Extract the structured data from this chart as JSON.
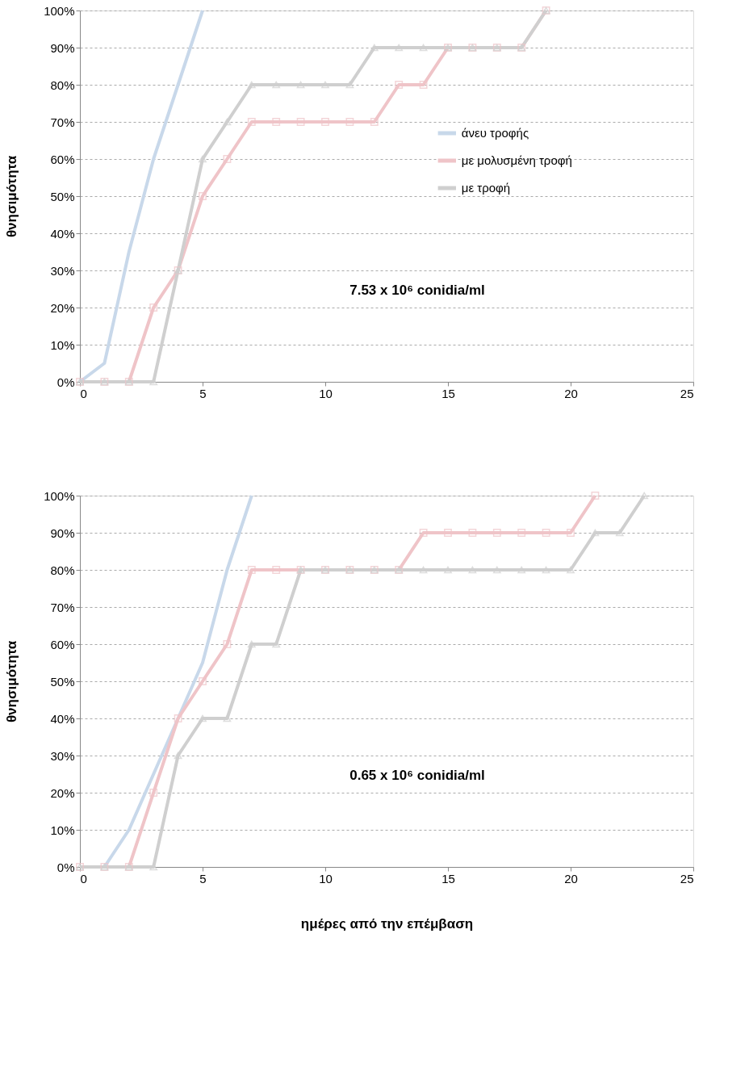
{
  "chart_data": [
    {
      "type": "line",
      "ylabel": "θνησιμότητα",
      "annotations": [
        "7.53 x 10⁶ conidia/ml"
      ],
      "legend": "right",
      "grid": "y",
      "line_style": "solid",
      "xlim": [
        0,
        25
      ],
      "xticks": [
        0,
        5,
        10,
        15,
        20,
        25
      ],
      "ylim": [
        0,
        100
      ],
      "yticks": [
        {
          "value": 0,
          "label": "0%"
        },
        {
          "value": 10,
          "label": "10%"
        },
        {
          "value": 20,
          "label": "20%"
        },
        {
          "value": 30,
          "label": "30%"
        },
        {
          "value": 40,
          "label": "40%"
        },
        {
          "value": 50,
          "label": "50%"
        },
        {
          "value": 60,
          "label": "60%"
        },
        {
          "value": 70,
          "label": "70%"
        },
        {
          "value": 80,
          "label": "80%"
        },
        {
          "value": 90,
          "label": "90%"
        },
        {
          "value": 100,
          "label": "100%"
        }
      ],
      "series": [
        {
          "name": "άνευ τροφής",
          "color": "#c8d8ea",
          "marker": "none",
          "x": [
            0,
            1,
            2,
            3,
            4,
            5
          ],
          "values": [
            0,
            5,
            35,
            60,
            80,
            100
          ]
        },
        {
          "name": "με  μολυσμένη τροφή",
          "color": "#efc4c8",
          "marker": "square",
          "x": [
            0,
            1,
            2,
            3,
            4,
            5,
            6,
            7,
            8,
            9,
            10,
            11,
            12,
            13,
            14,
            15,
            16,
            17,
            18,
            19
          ],
          "values": [
            0,
            0,
            0,
            20,
            30,
            50,
            60,
            70,
            70,
            70,
            70,
            70,
            70,
            80,
            80,
            90,
            90,
            90,
            90,
            100
          ]
        },
        {
          "name": "με τροφή",
          "color": "#cfcfcf",
          "marker": "triangle",
          "x": [
            0,
            1,
            2,
            3,
            4,
            5,
            6,
            7,
            8,
            9,
            10,
            11,
            12,
            13,
            14,
            15,
            16,
            17,
            18,
            19
          ],
          "values": [
            0,
            0,
            0,
            0,
            30,
            60,
            70,
            80,
            80,
            80,
            80,
            80,
            90,
            90,
            90,
            90,
            90,
            90,
            90,
            100
          ]
        }
      ]
    },
    {
      "type": "line",
      "ylabel": "θνησιμότητα",
      "xlabel": "ημέρες από την επέμβαση",
      "annotations": [
        "0.65 x 10⁶ conidia/ml"
      ],
      "grid": "y",
      "line_style": "solid",
      "xlim": [
        0,
        25
      ],
      "xticks": [
        0,
        5,
        10,
        15,
        20,
        25
      ],
      "ylim": [
        0,
        100
      ],
      "yticks": [
        {
          "value": 0,
          "label": "0%"
        },
        {
          "value": 10,
          "label": "10%"
        },
        {
          "value": 20,
          "label": "20%"
        },
        {
          "value": 30,
          "label": "30%"
        },
        {
          "value": 40,
          "label": "40%"
        },
        {
          "value": 50,
          "label": "50%"
        },
        {
          "value": 60,
          "label": "60%"
        },
        {
          "value": 70,
          "label": "70%"
        },
        {
          "value": 80,
          "label": "80%"
        },
        {
          "value": 90,
          "label": "90%"
        },
        {
          "value": 100,
          "label": "100%"
        }
      ],
      "series": [
        {
          "color": "#c8d8ea",
          "marker": "none",
          "x": [
            0,
            1,
            2,
            3,
            4,
            5,
            6,
            7
          ],
          "values": [
            0,
            0,
            10,
            25,
            40,
            55,
            80,
            100
          ]
        },
        {
          "color": "#efc4c8",
          "marker": "square",
          "x": [
            0,
            1,
            2,
            3,
            4,
            5,
            6,
            7,
            8,
            9,
            10,
            11,
            12,
            13,
            14,
            15,
            16,
            17,
            18,
            19,
            20,
            21
          ],
          "values": [
            0,
            0,
            0,
            20,
            40,
            50,
            60,
            80,
            80,
            80,
            80,
            80,
            80,
            80,
            90,
            90,
            90,
            90,
            90,
            90,
            90,
            100
          ]
        },
        {
          "color": "#cfcfcf",
          "marker": "triangle",
          "x": [
            0,
            1,
            2,
            3,
            4,
            5,
            6,
            7,
            8,
            9,
            10,
            11,
            12,
            13,
            14,
            15,
            16,
            17,
            18,
            19,
            20,
            21,
            22,
            23
          ],
          "values": [
            0,
            0,
            0,
            0,
            30,
            40,
            40,
            60,
            60,
            80,
            80,
            80,
            80,
            80,
            80,
            80,
            80,
            80,
            80,
            80,
            80,
            90,
            90,
            100
          ]
        }
      ]
    }
  ]
}
